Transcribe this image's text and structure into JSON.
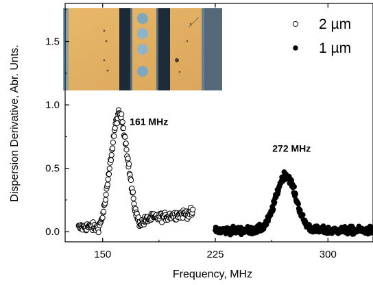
{
  "chart_data": {
    "type": "scatter",
    "xlabel": "Frequency, MHz",
    "ylabel": "Dispersion Derivative, Abr. Unts.",
    "xlim": [
      125,
      330
    ],
    "ylim": [
      -0.08,
      1.8
    ],
    "xticks": [
      150,
      225,
      300
    ],
    "yticks": [
      0.0,
      0.5,
      1.0,
      1.5
    ],
    "xtick_labels": [
      "150",
      "225",
      "300"
    ],
    "ytick_labels": [
      "0.0",
      "0.5",
      "1.0",
      "1.5"
    ],
    "grid": false,
    "legend_position": "top-right",
    "series": [
      {
        "name": "2 µm",
        "marker": "open-circle",
        "x_range": [
          134,
          210
        ],
        "peak_center": 161,
        "peak_height": 0.85,
        "peak_width": 5.5,
        "baseline_start": 0.03,
        "baseline_end": 0.15,
        "noise": 0.035,
        "point_count": 230
      },
      {
        "name": "1 µm",
        "marker": "filled-circle",
        "x_range": [
          225,
          334
        ],
        "peak_center": 272,
        "peak_height": 0.44,
        "peak_width": 6.5,
        "baseline_start": 0.01,
        "baseline_end": 0.01,
        "noise": 0.03,
        "point_count": 360
      }
    ],
    "annotations": [
      {
        "text": "161 MHz",
        "x": 168,
        "y": 0.84
      },
      {
        "text": "272 MHz",
        "x": 263,
        "y": 0.63
      }
    ]
  },
  "inset": {
    "description_icon": "microscope-image"
  }
}
